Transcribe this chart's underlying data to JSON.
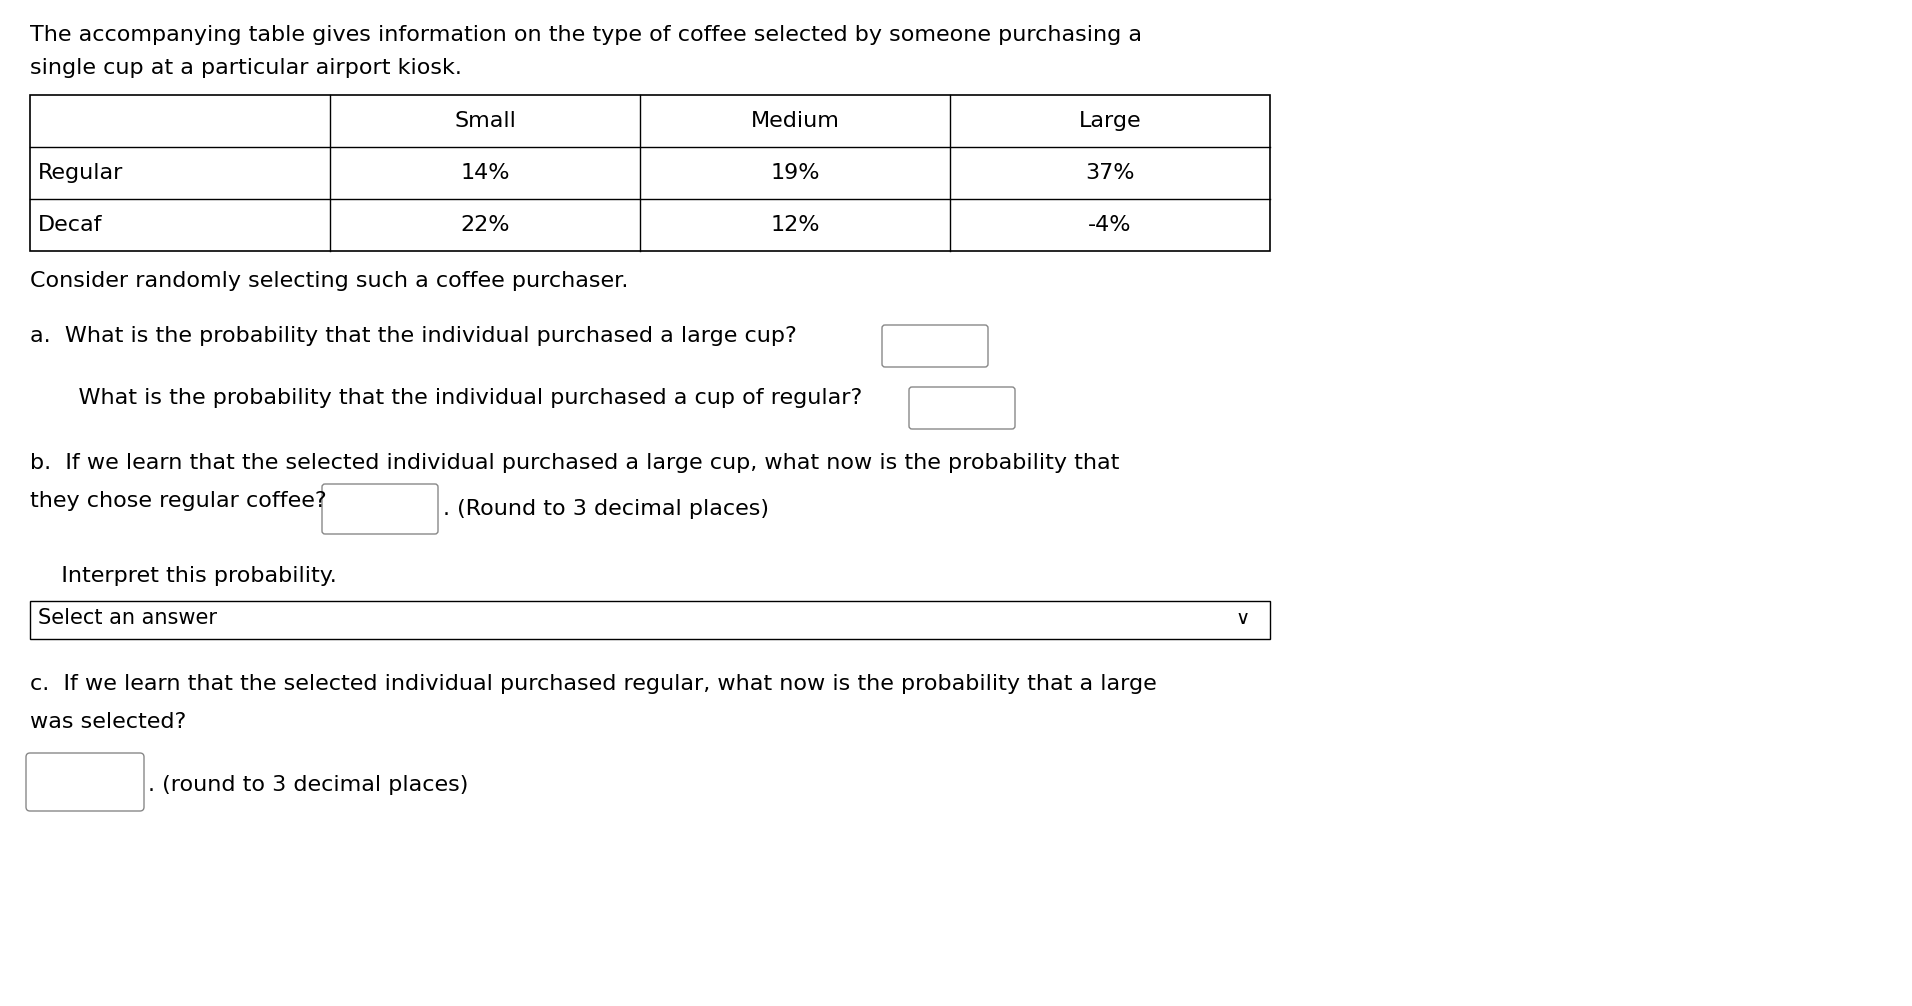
{
  "title_line1": "The accompanying table gives information on the type of coffee selected by someone purchasing a",
  "title_line2": "single cup at a particular airport kiosk.",
  "table_headers": [
    "",
    "Small",
    "Medium",
    "Large"
  ],
  "table_row1": [
    "Regular",
    "14%",
    "19%",
    "37%"
  ],
  "table_row2": [
    "Decaf",
    "22%",
    "12%",
    "-4%"
  ],
  "consider_text": "Consider randomly selecting such a coffee purchaser.",
  "q_a_text": "a.  What is the probability that the individual purchased a large cup?",
  "q_a2_text": "    What is the probability that the individual purchased a cup of regular?",
  "q_b_line1": "b.  If we learn that the selected individual purchased a large cup, what now is the probability that",
  "q_b_line2": "they chose regular coffee?",
  "q_b_suffix": ". (Round to 3 decimal places)",
  "interpret_text": "   Interpret this probability.",
  "select_answer_text": "Select an answer",
  "q_c_line1": "c.  If we learn that the selected individual purchased regular, what now is the probability that a large",
  "q_c_line2": "was selected?",
  "q_c_suffix": ". (round to 3 decimal places)",
  "bg_color": "#ffffff",
  "text_color": "#000000",
  "font_size": 16,
  "table_font_size": 16
}
